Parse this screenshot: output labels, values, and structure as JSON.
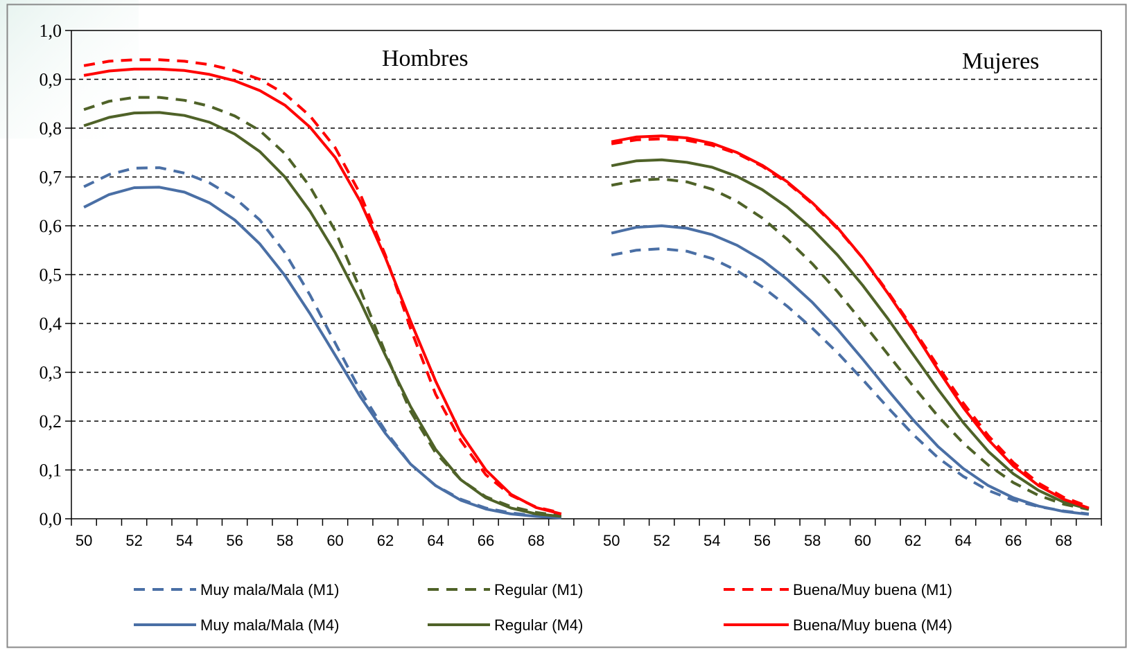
{
  "chart_data": {
    "type": "line",
    "ylim": [
      0,
      1.0
    ],
    "yticks": [
      "0,0",
      "0,1",
      "0,2",
      "0,3",
      "0,4",
      "0,5",
      "0,6",
      "0,7",
      "0,8",
      "0,9",
      "1,0"
    ],
    "grid": "horizontal-dashed",
    "legend_position": "bottom",
    "x": [
      50,
      51,
      52,
      53,
      54,
      55,
      56,
      57,
      58,
      59,
      60,
      61,
      62,
      63,
      64,
      65,
      66,
      67,
      68,
      69
    ],
    "xticks": [
      "50",
      "52",
      "54",
      "56",
      "58",
      "60",
      "62",
      "64",
      "66",
      "68"
    ],
    "colors": {
      "blue": "#4a6fa5",
      "green": "#4f6228",
      "red": "#ff0000"
    },
    "legend": [
      {
        "label": "Muy mala/Mala (M1)",
        "color": "#4a6fa5",
        "dash": true
      },
      {
        "label": "Regular (M1)",
        "color": "#4f6228",
        "dash": true
      },
      {
        "label": "Buena/Muy buena (M1)",
        "color": "#ff0000",
        "dash": true
      },
      {
        "label": "Muy mala/Mala (M4)",
        "color": "#4a6fa5",
        "dash": false
      },
      {
        "label": "Regular (M4)",
        "color": "#4f6228",
        "dash": false
      },
      {
        "label": "Buena/Muy buena (M4)",
        "color": "#ff0000",
        "dash": false
      }
    ],
    "panels": [
      {
        "title": "Hombres",
        "series": [
          {
            "name": "Muy mala/Mala (M1)",
            "color": "#4a6fa5",
            "dash": true,
            "values": [
              0.68,
              0.705,
              0.718,
              0.719,
              0.708,
              0.688,
              0.657,
              0.612,
              0.545,
              0.458,
              0.36,
              0.262,
              0.18,
              0.112,
              0.068,
              0.04,
              0.022,
              0.012,
              0.006,
              0.003
            ]
          },
          {
            "name": "Regular (M1)",
            "color": "#4f6228",
            "dash": true,
            "values": [
              0.838,
              0.855,
              0.863,
              0.863,
              0.857,
              0.845,
              0.825,
              0.795,
              0.748,
              0.68,
              0.59,
              0.47,
              0.34,
              0.22,
              0.135,
              0.08,
              0.045,
              0.025,
              0.013,
              0.006
            ]
          },
          {
            "name": "Buena/Muy buena (M1)",
            "color": "#ff0000",
            "dash": true,
            "values": [
              0.928,
              0.937,
              0.94,
              0.94,
              0.937,
              0.93,
              0.918,
              0.9,
              0.87,
              0.825,
              0.76,
              0.665,
              0.54,
              0.39,
              0.255,
              0.16,
              0.09,
              0.048,
              0.024,
              0.012
            ]
          },
          {
            "name": "Muy mala/Mala (M4)",
            "color": "#4a6fa5",
            "dash": false,
            "values": [
              0.638,
              0.664,
              0.678,
              0.679,
              0.669,
              0.647,
              0.612,
              0.563,
              0.498,
              0.42,
              0.335,
              0.25,
              0.175,
              0.112,
              0.068,
              0.038,
              0.02,
              0.01,
              0.005,
              0.002
            ]
          },
          {
            "name": "Regular (M4)",
            "color": "#4f6228",
            "dash": false,
            "values": [
              0.805,
              0.822,
              0.831,
              0.832,
              0.826,
              0.812,
              0.788,
              0.752,
              0.7,
              0.63,
              0.545,
              0.445,
              0.335,
              0.23,
              0.142,
              0.08,
              0.043,
              0.022,
              0.01,
              0.005
            ]
          },
          {
            "name": "Buena/Muy buena (M4)",
            "color": "#ff0000",
            "dash": false,
            "values": [
              0.908,
              0.917,
              0.921,
              0.921,
              0.918,
              0.91,
              0.897,
              0.877,
              0.847,
              0.802,
              0.74,
              0.65,
              0.535,
              0.405,
              0.282,
              0.175,
              0.1,
              0.05,
              0.023,
              0.01
            ]
          }
        ]
      },
      {
        "title": "Mujeres",
        "series": [
          {
            "name": "Muy mala/Mala (M1)",
            "color": "#4a6fa5",
            "dash": true,
            "values": [
              0.54,
              0.55,
              0.553,
              0.548,
              0.533,
              0.508,
              0.475,
              0.435,
              0.39,
              0.34,
              0.285,
              0.228,
              0.173,
              0.125,
              0.087,
              0.058,
              0.038,
              0.025,
              0.016,
              0.01
            ]
          },
          {
            "name": "Regular (M1)",
            "color": "#4f6228",
            "dash": true,
            "values": [
              0.683,
              0.693,
              0.696,
              0.69,
              0.675,
              0.65,
              0.616,
              0.572,
              0.522,
              0.465,
              0.402,
              0.337,
              0.272,
              0.21,
              0.155,
              0.11,
              0.074,
              0.048,
              0.03,
              0.019
            ]
          },
          {
            "name": "Buena/Muy buena (M1)",
            "color": "#ff0000",
            "dash": true,
            "values": [
              0.768,
              0.776,
              0.778,
              0.775,
              0.765,
              0.748,
              0.722,
              0.688,
              0.645,
              0.594,
              0.534,
              0.465,
              0.39,
              0.312,
              0.237,
              0.17,
              0.115,
              0.073,
              0.044,
              0.025
            ]
          },
          {
            "name": "Muy mala/Mala (M4)",
            "color": "#4a6fa5",
            "dash": false,
            "values": [
              0.585,
              0.597,
              0.6,
              0.595,
              0.582,
              0.56,
              0.53,
              0.49,
              0.443,
              0.388,
              0.327,
              0.264,
              0.203,
              0.148,
              0.103,
              0.068,
              0.043,
              0.026,
              0.015,
              0.009
            ]
          },
          {
            "name": "Regular (M4)",
            "color": "#4f6228",
            "dash": false,
            "values": [
              0.723,
              0.733,
              0.735,
              0.73,
              0.72,
              0.701,
              0.674,
              0.638,
              0.593,
              0.54,
              0.478,
              0.41,
              0.337,
              0.265,
              0.197,
              0.138,
              0.092,
              0.058,
              0.034,
              0.02
            ]
          },
          {
            "name": "Buena/Muy buena (M4)",
            "color": "#ff0000",
            "dash": false,
            "values": [
              0.772,
              0.782,
              0.784,
              0.78,
              0.769,
              0.75,
              0.724,
              0.69,
              0.647,
              0.596,
              0.534,
              0.462,
              0.386,
              0.305,
              0.228,
              0.162,
              0.108,
              0.068,
              0.04,
              0.022
            ]
          }
        ]
      }
    ]
  }
}
